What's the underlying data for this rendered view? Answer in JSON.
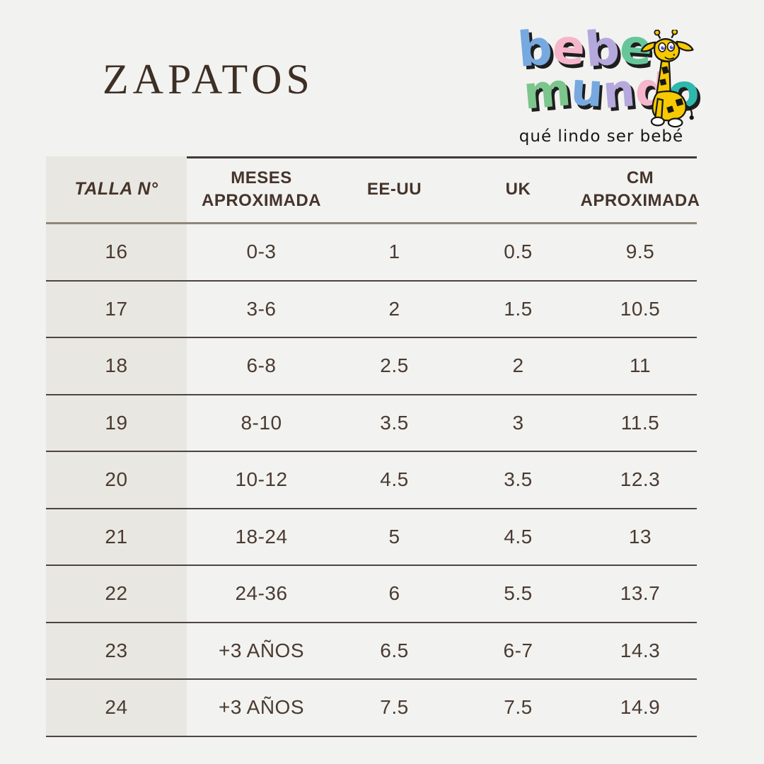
{
  "title": "ZAPATOS",
  "logo": {
    "brand": "bebemundo",
    "tagline": "qué lindo ser bebé",
    "giraffe_icon": "giraffe-icon",
    "words": [
      {
        "text": "bebe",
        "letters": [
          {
            "ch": "b",
            "color": "#76a9e0"
          },
          {
            "ch": "e",
            "color": "#f5b5ca"
          },
          {
            "ch": "b",
            "color": "#b4a8dc"
          },
          {
            "ch": "e",
            "color": "#66c69a"
          }
        ]
      },
      {
        "text": "mundo",
        "letters": [
          {
            "ch": "m",
            "color": "#7cc58c"
          },
          {
            "ch": "u",
            "color": "#76a9e0"
          },
          {
            "ch": "n",
            "color": "#b4a8dc"
          },
          {
            "ch": "d",
            "color": "#f5b5ca"
          },
          {
            "ch": "o",
            "color": "#2eb8ae"
          }
        ]
      }
    ]
  },
  "table": {
    "columns": [
      {
        "key": "talla",
        "label": "TALLA N°"
      },
      {
        "key": "meses",
        "label": "MESES APROXIMADA"
      },
      {
        "key": "eeuu",
        "label": "EE-UU"
      },
      {
        "key": "uk",
        "label": "UK"
      },
      {
        "key": "cm",
        "label": "CM APROXIMADA"
      }
    ],
    "rows": [
      [
        "16",
        "0-3",
        "1",
        "0.5",
        "9.5"
      ],
      [
        "17",
        "3-6",
        "2",
        "1.5",
        "10.5"
      ],
      [
        "18",
        "6-8",
        "2.5",
        "2",
        "11"
      ],
      [
        "19",
        "8-10",
        "3.5",
        "3",
        "11.5"
      ],
      [
        "20",
        "10-12",
        "4.5",
        "3.5",
        "12.3"
      ],
      [
        "21",
        "18-24",
        "5",
        "4.5",
        "13"
      ],
      [
        "22",
        "24-36",
        "6",
        "5.5",
        "13.7"
      ],
      [
        "23",
        "+3 AÑOS",
        "6.5",
        "6-7",
        "14.3"
      ],
      [
        "24",
        "+3 AÑOS",
        "7.5",
        "7.5",
        "14.9"
      ]
    ]
  },
  "colors": {
    "background": "#f2f2f0",
    "first_column_bg": "#e9e7e1",
    "title_text": "#3e2f25",
    "header_text": "#45342a",
    "cell_text": "#4a3b31",
    "header_underline": "#8f867a",
    "row_divider": "#4c4347",
    "giraffe_yellow": "#f6c900"
  }
}
